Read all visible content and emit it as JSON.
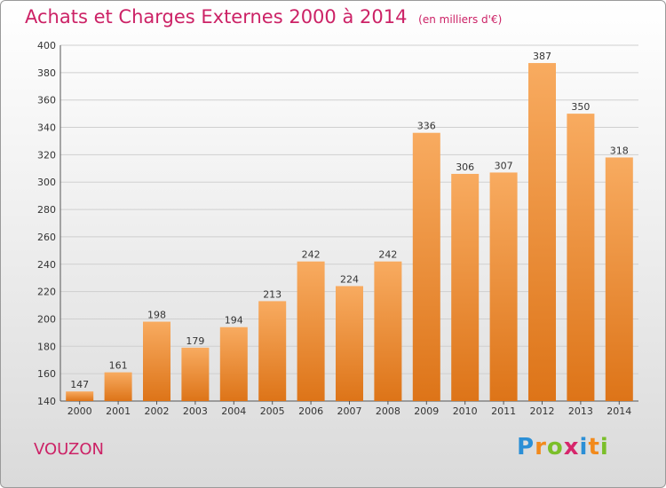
{
  "title": "Achats et Charges Externes 2000 à 2014",
  "subtitle": "(en milliers d'€)",
  "location": "VOUZON",
  "logo": "Proxiti",
  "colors": {
    "title": "#cc2266",
    "bar_light": "#f8ab60",
    "bar_dark": "#dd7418"
  },
  "chart_data": {
    "type": "bar",
    "categories": [
      "2000",
      "2001",
      "2002",
      "2003",
      "2004",
      "2005",
      "2006",
      "2007",
      "2008",
      "2009",
      "2010",
      "2011",
      "2012",
      "2013",
      "2014"
    ],
    "values": [
      147,
      161,
      198,
      179,
      194,
      213,
      242,
      224,
      242,
      336,
      306,
      307,
      387,
      350,
      318
    ],
    "title": "Achats et Charges Externes 2000 à 2014",
    "subtitle": "(en milliers d'€)",
    "xlabel": "",
    "ylabel": "",
    "ylim": [
      140,
      400
    ],
    "yticks": [
      140,
      160,
      180,
      200,
      220,
      240,
      260,
      280,
      300,
      320,
      340,
      360,
      380,
      400
    ],
    "grid": true,
    "data_labels": true
  }
}
